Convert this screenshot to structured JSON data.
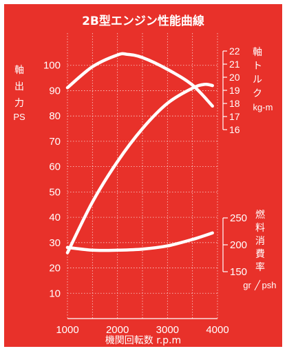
{
  "chart_data": {
    "type": "line",
    "title": "2B型エンジン性能曲線",
    "xlabel": "機関回転数 r.p.m",
    "x_ticks": [
      1000,
      2000,
      3000,
      4000
    ],
    "xlim": [
      1000,
      4000
    ],
    "left_axis": {
      "label_chars": [
        "軸",
        "出",
        "力"
      ],
      "unit": "PS",
      "ticks": [
        10,
        20,
        30,
        40,
        50,
        60,
        70,
        80,
        90,
        100
      ],
      "ylim": [
        0,
        110
      ]
    },
    "torque_axis": {
      "label_chars": [
        "軸",
        "ト",
        "ル",
        "ク"
      ],
      "unit": "kg-m",
      "ticks": [
        16,
        17,
        18,
        19,
        20,
        21,
        22
      ]
    },
    "fuel_axis": {
      "label_chars": [
        "燃",
        "料",
        "消",
        "費",
        "率"
      ],
      "unit": "gr/psh",
      "unit_parts": [
        "gr",
        "psh"
      ],
      "ticks": [
        150,
        200,
        250
      ]
    },
    "series": [
      {
        "id": "power",
        "axis": "left",
        "x": [
          1000,
          1500,
          2000,
          2500,
          3000,
          3500,
          3750,
          3900
        ],
        "y": [
          26,
          46,
          62,
          75,
          85,
          91,
          92.5,
          92
        ]
      },
      {
        "id": "torque",
        "axis": "torque",
        "x": [
          1000,
          1500,
          2000,
          2200,
          2500,
          3000,
          3500,
          3900
        ],
        "y": [
          19.2,
          20.8,
          21.7,
          21.75,
          21.5,
          20.6,
          19.4,
          17.8
        ]
      },
      {
        "id": "fuel",
        "axis": "fuel",
        "x": [
          1000,
          1500,
          2000,
          2500,
          3000,
          3500,
          3900
        ],
        "y": [
          195,
          190,
          190,
          192,
          198,
          210,
          222
        ]
      }
    ]
  }
}
